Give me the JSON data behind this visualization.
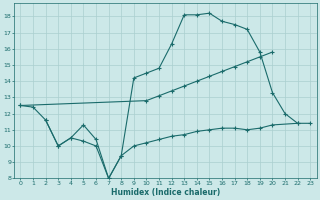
{
  "xlabel": "Humidex (Indice chaleur)",
  "bg_color": "#cce8e8",
  "grid_color": "#aacfcf",
  "line_color": "#1a6b6b",
  "xlim": [
    -0.5,
    23.5
  ],
  "ylim": [
    8,
    18.8
  ],
  "xticks": [
    0,
    1,
    2,
    3,
    4,
    5,
    6,
    7,
    8,
    9,
    10,
    11,
    12,
    13,
    14,
    15,
    16,
    17,
    18,
    19,
    20,
    21,
    22,
    23
  ],
  "yticks": [
    8,
    9,
    10,
    11,
    12,
    13,
    14,
    15,
    16,
    17,
    18
  ],
  "line1_x": [
    0,
    1,
    2,
    3,
    4,
    5,
    6,
    7,
    8,
    9,
    10,
    11,
    12,
    13,
    14,
    15,
    16,
    17,
    18,
    19,
    20,
    21,
    22
  ],
  "line1_y": [
    12.5,
    12.4,
    11.6,
    10.0,
    10.5,
    11.3,
    10.4,
    8.0,
    9.4,
    14.2,
    14.5,
    14.8,
    16.3,
    18.1,
    18.1,
    18.2,
    17.7,
    17.5,
    17.2,
    15.8,
    13.3,
    12.0,
    11.4
  ],
  "line2_x": [
    0,
    10,
    11,
    12,
    13,
    14,
    15,
    16,
    17,
    18,
    19,
    20
  ],
  "line2_y": [
    12.5,
    12.8,
    13.1,
    13.4,
    13.7,
    14.0,
    14.3,
    14.6,
    14.9,
    15.2,
    15.5,
    15.8
  ],
  "line3_x": [
    2,
    3,
    4,
    5,
    6,
    7,
    8,
    9,
    10,
    11,
    12,
    13,
    14,
    15,
    16,
    17,
    18,
    19,
    20,
    22,
    23
  ],
  "line3_y": [
    11.6,
    10.0,
    10.5,
    10.3,
    10.0,
    8.0,
    9.4,
    10.0,
    10.2,
    10.4,
    10.6,
    10.7,
    10.9,
    11.0,
    11.1,
    11.1,
    11.0,
    11.1,
    11.3,
    11.4,
    11.4
  ]
}
